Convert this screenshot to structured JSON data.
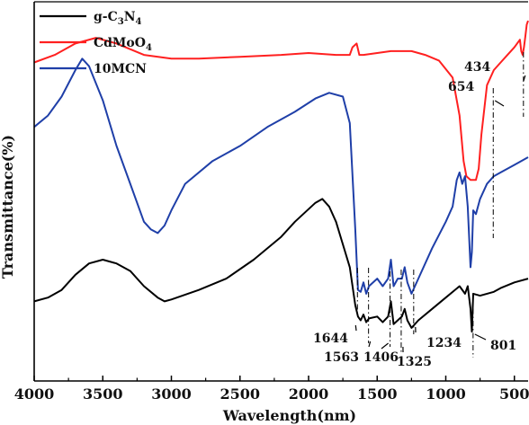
{
  "chart_data": {
    "type": "line",
    "title": "",
    "xlabel": "Wavelength(nm)",
    "ylabel": "Transmittance(%)",
    "xlim": [
      4000,
      400
    ],
    "ylim": [
      0,
      100
    ],
    "x_ticks": [
      "4000",
      "3500",
      "3000",
      "2500",
      "2000",
      "1500",
      "1000",
      "500"
    ],
    "y_ticks_shown": false,
    "legend": {
      "position": "top-left",
      "entries": [
        {
          "label_main": "g-C",
          "sub1": "3",
          "label_mid": "N",
          "sub2": "4"
        },
        {
          "label_main": "CdMoO",
          "sub1": "4",
          "label_mid": "",
          "sub2": ""
        },
        {
          "label_main": "10MCN",
          "sub1": "",
          "label_mid": "",
          "sub2": ""
        }
      ]
    },
    "colors": {
      "g_c3n4": "#000000",
      "cdmoo4": "#ff2020",
      "mcn": "#1f3fa8"
    },
    "series": [
      {
        "key": "cdmoo4",
        "points": [
          [
            4000,
            84
          ],
          [
            3850,
            86
          ],
          [
            3700,
            89
          ],
          [
            3550,
            90.5
          ],
          [
            3400,
            89
          ],
          [
            3200,
            86
          ],
          [
            3000,
            85
          ],
          [
            2800,
            85
          ],
          [
            2500,
            85.5
          ],
          [
            2200,
            86
          ],
          [
            2000,
            86.5
          ],
          [
            1800,
            86
          ],
          [
            1700,
            86
          ],
          [
            1680,
            88
          ],
          [
            1650,
            89
          ],
          [
            1630,
            86
          ],
          [
            1600,
            86
          ],
          [
            1500,
            86.5
          ],
          [
            1400,
            87
          ],
          [
            1250,
            87
          ],
          [
            1150,
            86
          ],
          [
            1050,
            84.5
          ],
          [
            950,
            80
          ],
          [
            900,
            70
          ],
          [
            870,
            58
          ],
          [
            850,
            54
          ],
          [
            820,
            53
          ],
          [
            800,
            53
          ],
          [
            780,
            53
          ],
          [
            760,
            56
          ],
          [
            740,
            65
          ],
          [
            700,
            78
          ],
          [
            650,
            82
          ],
          [
            600,
            84
          ],
          [
            550,
            86
          ],
          [
            500,
            88
          ],
          [
            480,
            89
          ],
          [
            460,
            90
          ],
          [
            450,
            87
          ],
          [
            440,
            86
          ],
          [
            430,
            88
          ],
          [
            420,
            91
          ],
          [
            410,
            94
          ],
          [
            400,
            95
          ]
        ]
      },
      {
        "key": "mcn",
        "points": [
          [
            4000,
            67
          ],
          [
            3900,
            70
          ],
          [
            3800,
            75
          ],
          [
            3700,
            82
          ],
          [
            3650,
            85
          ],
          [
            3600,
            83
          ],
          [
            3500,
            74
          ],
          [
            3400,
            62
          ],
          [
            3300,
            52
          ],
          [
            3200,
            42
          ],
          [
            3150,
            40
          ],
          [
            3100,
            39
          ],
          [
            3050,
            41
          ],
          [
            3000,
            45
          ],
          [
            2900,
            52
          ],
          [
            2700,
            58
          ],
          [
            2500,
            62
          ],
          [
            2300,
            67
          ],
          [
            2100,
            71
          ],
          [
            1950,
            74.5
          ],
          [
            1850,
            76
          ],
          [
            1750,
            75
          ],
          [
            1700,
            68
          ],
          [
            1660,
            40
          ],
          [
            1640,
            24
          ],
          [
            1620,
            23.5
          ],
          [
            1600,
            26
          ],
          [
            1580,
            23
          ],
          [
            1560,
            25
          ],
          [
            1500,
            27
          ],
          [
            1460,
            25
          ],
          [
            1420,
            27
          ],
          [
            1400,
            32
          ],
          [
            1380,
            25
          ],
          [
            1350,
            27
          ],
          [
            1320,
            27
          ],
          [
            1300,
            30
          ],
          [
            1280,
            26
          ],
          [
            1250,
            23
          ],
          [
            1200,
            27
          ],
          [
            1100,
            35
          ],
          [
            1000,
            42
          ],
          [
            950,
            46
          ],
          [
            920,
            53
          ],
          [
            900,
            55
          ],
          [
            880,
            52
          ],
          [
            860,
            54
          ],
          [
            840,
            46
          ],
          [
            820,
            30
          ],
          [
            810,
            34
          ],
          [
            800,
            45
          ],
          [
            780,
            44
          ],
          [
            750,
            48
          ],
          [
            700,
            52
          ],
          [
            650,
            54
          ],
          [
            600,
            55
          ],
          [
            500,
            57
          ],
          [
            450,
            58
          ],
          [
            400,
            59
          ]
        ]
      },
      {
        "key": "g_c3n4",
        "points": [
          [
            4000,
            21
          ],
          [
            3900,
            22
          ],
          [
            3800,
            24
          ],
          [
            3700,
            28
          ],
          [
            3600,
            31
          ],
          [
            3500,
            32
          ],
          [
            3400,
            31
          ],
          [
            3300,
            29
          ],
          [
            3200,
            25
          ],
          [
            3100,
            22
          ],
          [
            3050,
            21
          ],
          [
            3000,
            21.5
          ],
          [
            2800,
            24
          ],
          [
            2600,
            27
          ],
          [
            2400,
            32
          ],
          [
            2200,
            38
          ],
          [
            2100,
            42
          ],
          [
            1950,
            47
          ],
          [
            1900,
            48
          ],
          [
            1850,
            46
          ],
          [
            1800,
            42
          ],
          [
            1700,
            30
          ],
          [
            1660,
            20
          ],
          [
            1640,
            17
          ],
          [
            1620,
            16
          ],
          [
            1600,
            17.5
          ],
          [
            1580,
            15.5
          ],
          [
            1560,
            16.5
          ],
          [
            1500,
            17
          ],
          [
            1460,
            15.5
          ],
          [
            1420,
            17
          ],
          [
            1400,
            21
          ],
          [
            1380,
            15
          ],
          [
            1350,
            16
          ],
          [
            1320,
            17
          ],
          [
            1300,
            19
          ],
          [
            1280,
            16
          ],
          [
            1250,
            14
          ],
          [
            1200,
            16
          ],
          [
            1100,
            19
          ],
          [
            1000,
            22
          ],
          [
            900,
            25
          ],
          [
            860,
            23
          ],
          [
            840,
            25
          ],
          [
            820,
            19
          ],
          [
            810,
            13
          ],
          [
            800,
            23
          ],
          [
            750,
            22.5
          ],
          [
            700,
            23
          ],
          [
            650,
            23.5
          ],
          [
            600,
            24.5
          ],
          [
            500,
            26
          ],
          [
            400,
            27
          ]
        ]
      }
    ],
    "annotations": [
      {
        "label": "434",
        "x": 434
      },
      {
        "label": "654",
        "x": 654
      },
      {
        "label": "1644",
        "x": 1644
      },
      {
        "label": "1563",
        "x": 1563
      },
      {
        "label": "1406",
        "x": 1406
      },
      {
        "label": "1325",
        "x": 1325
      },
      {
        "label": "1234",
        "x": 1234
      },
      {
        "label": "801",
        "x": 801
      }
    ]
  }
}
